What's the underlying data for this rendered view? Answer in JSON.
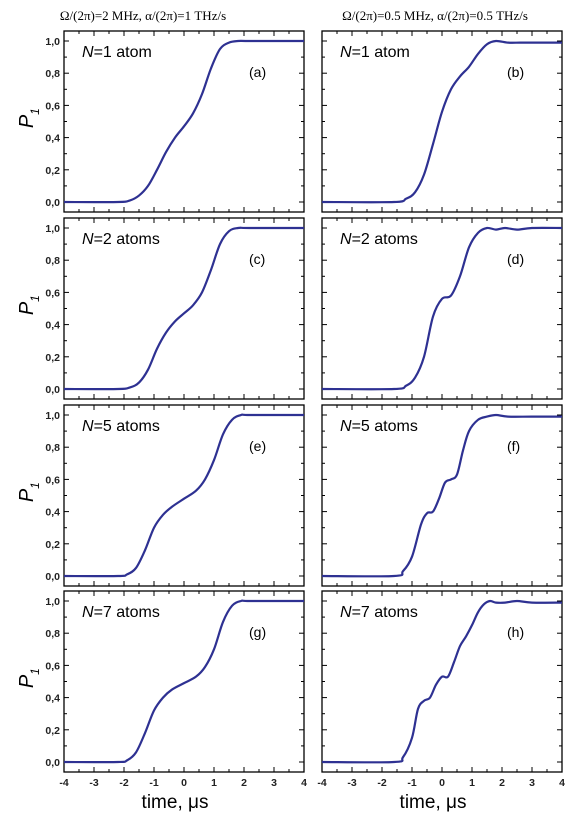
{
  "column_titles": [
    "Ω/(2π)=2 MHz, α/(2π)=1 THz/s",
    "Ω/(2π)=0.5 MHz, α/(2π)=0.5 THz/s"
  ],
  "ylabel_main": "P",
  "ylabel_sub": "1",
  "xlabel": "time, μs",
  "series_color": "#2e3192",
  "chart_data": [
    {
      "type": "line",
      "panel": "(a)",
      "annotation": "N=1 atom",
      "xlim": [
        -4,
        4
      ],
      "ylim": [
        0,
        1
      ],
      "x": [
        -4,
        -2.2,
        -1.8,
        -1.5,
        -1.2,
        -0.9,
        -0.6,
        -0.3,
        0,
        0.3,
        0.6,
        0.9,
        1.2,
        1.5,
        1.8,
        2.2,
        4
      ],
      "y": [
        0,
        0,
        0.01,
        0.04,
        0.1,
        0.2,
        0.31,
        0.4,
        0.47,
        0.55,
        0.67,
        0.83,
        0.95,
        0.99,
        1.0,
        1.0,
        1.0
      ]
    },
    {
      "type": "line",
      "panel": "(b)",
      "annotation": "N=1 atom",
      "xlim": [
        -4,
        4
      ],
      "ylim": [
        0,
        1
      ],
      "x": [
        -4,
        -1.6,
        -1.2,
        -0.9,
        -0.6,
        -0.3,
        0,
        0.3,
        0.6,
        0.9,
        1.2,
        1.5,
        1.8,
        2.2,
        2.6,
        3,
        4
      ],
      "y": [
        0,
        0,
        0.02,
        0.06,
        0.17,
        0.36,
        0.56,
        0.7,
        0.78,
        0.84,
        0.92,
        0.98,
        1.0,
        0.99,
        0.99,
        0.99,
        0.99
      ]
    },
    {
      "type": "line",
      "panel": "(c)",
      "annotation": "N=2 atoms",
      "xlim": [
        -4,
        4
      ],
      "ylim": [
        0,
        1
      ],
      "x": [
        -4,
        -2.2,
        -1.8,
        -1.5,
        -1.2,
        -0.9,
        -0.6,
        -0.3,
        0,
        0.3,
        0.6,
        0.9,
        1.2,
        1.5,
        1.8,
        2.2,
        4
      ],
      "y": [
        0,
        0,
        0.01,
        0.04,
        0.12,
        0.25,
        0.35,
        0.42,
        0.47,
        0.52,
        0.6,
        0.74,
        0.9,
        0.98,
        1.0,
        1.0,
        1.0
      ]
    },
    {
      "type": "line",
      "panel": "(d)",
      "annotation": "N=2 atoms",
      "xlim": [
        -4,
        4
      ],
      "ylim": [
        0,
        1
      ],
      "x": [
        -4,
        -1.6,
        -1.2,
        -0.9,
        -0.6,
        -0.3,
        0,
        0.3,
        0.6,
        0.9,
        1.2,
        1.5,
        1.8,
        2.1,
        2.5,
        3,
        4
      ],
      "y": [
        0,
        0,
        0.02,
        0.07,
        0.2,
        0.45,
        0.56,
        0.58,
        0.7,
        0.88,
        0.97,
        1.0,
        0.99,
        1.0,
        0.99,
        1.0,
        1.0
      ]
    },
    {
      "type": "line",
      "panel": "(e)",
      "annotation": "N=5 atoms",
      "xlim": [
        -4,
        4
      ],
      "ylim": [
        0,
        1
      ],
      "x": [
        -4,
        -2.2,
        -1.9,
        -1.6,
        -1.3,
        -1.0,
        -0.7,
        -0.4,
        0,
        0.4,
        0.7,
        1.0,
        1.3,
        1.6,
        1.9,
        2.2,
        4
      ],
      "y": [
        0,
        0,
        0.01,
        0.05,
        0.16,
        0.3,
        0.38,
        0.43,
        0.48,
        0.53,
        0.6,
        0.72,
        0.88,
        0.97,
        1.0,
        1.0,
        1.0
      ]
    },
    {
      "type": "line",
      "panel": "(f)",
      "annotation": "N=5 atoms",
      "xlim": [
        -4,
        4
      ],
      "ylim": [
        0,
        1
      ],
      "x": [
        -4,
        -1.6,
        -1.3,
        -1.0,
        -0.7,
        -0.5,
        -0.3,
        -0.1,
        0.1,
        0.3,
        0.5,
        0.7,
        0.9,
        1.2,
        1.5,
        1.8,
        2.2,
        3,
        4
      ],
      "y": [
        0,
        0,
        0.03,
        0.12,
        0.32,
        0.39,
        0.4,
        0.48,
        0.58,
        0.6,
        0.63,
        0.78,
        0.9,
        0.97,
        0.99,
        1.0,
        0.99,
        0.99,
        0.99
      ]
    },
    {
      "type": "line",
      "panel": "(g)",
      "annotation": "N=7 atoms",
      "xlim": [
        -4,
        4
      ],
      "ylim": [
        0,
        1
      ],
      "x": [
        -4,
        -2.2,
        -1.9,
        -1.6,
        -1.3,
        -1.0,
        -0.7,
        -0.4,
        0,
        0.4,
        0.7,
        1.0,
        1.3,
        1.6,
        1.9,
        2.2,
        4
      ],
      "y": [
        0,
        0,
        0.01,
        0.06,
        0.18,
        0.32,
        0.4,
        0.45,
        0.49,
        0.53,
        0.59,
        0.7,
        0.87,
        0.97,
        1.0,
        1.0,
        1.0
      ]
    },
    {
      "type": "line",
      "panel": "(h)",
      "annotation": "N=7 atoms",
      "xlim": [
        -4,
        4
      ],
      "ylim": [
        0,
        1
      ],
      "x": [
        -4,
        -1.6,
        -1.3,
        -1.0,
        -0.8,
        -0.6,
        -0.4,
        -0.2,
        0,
        0.2,
        0.4,
        0.6,
        0.8,
        1.0,
        1.2,
        1.4,
        1.6,
        1.8,
        2.1,
        2.5,
        3,
        4
      ],
      "y": [
        0,
        0,
        0.03,
        0.15,
        0.33,
        0.38,
        0.4,
        0.48,
        0.53,
        0.53,
        0.62,
        0.72,
        0.78,
        0.85,
        0.93,
        0.98,
        1.0,
        0.99,
        0.99,
        1.0,
        0.99,
        0.99
      ]
    }
  ],
  "y_ticks": [
    "0,0",
    "0,2",
    "0,4",
    "0,6",
    "0,8",
    "1,0"
  ],
  "x_ticks": [
    "-4",
    "-3",
    "-2",
    "-1",
    "0",
    "1",
    "2",
    "3",
    "4"
  ]
}
